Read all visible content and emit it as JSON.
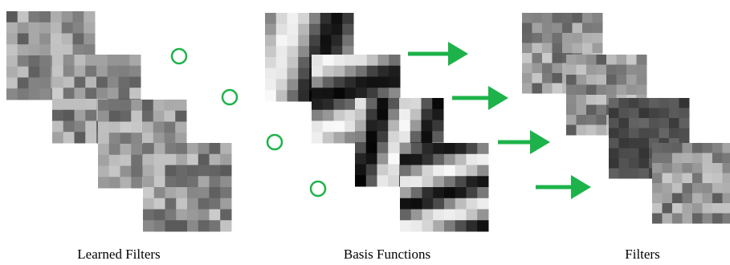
{
  "labels": {
    "learned": "Learned Filters",
    "basis": "Basis Functions",
    "filters": "Filters"
  }
}
